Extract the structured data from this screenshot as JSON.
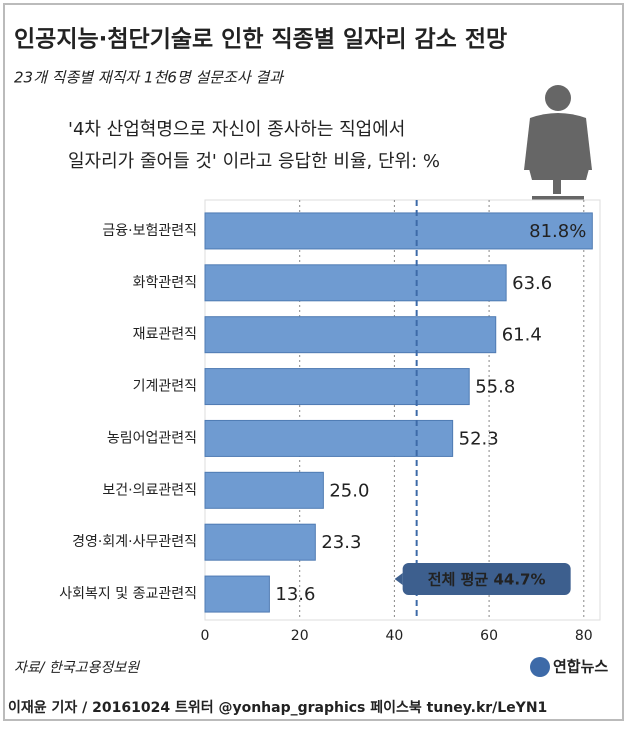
{
  "chart_data": {
    "type": "hbar",
    "title": "인공지능·첨단기술로 인한 직종별 일자리 감소 전망",
    "subtitle": "23개 직종별 재직자 1천6명 설문조사 결과",
    "note": [
      "'4차 산업혁명으로 자신이 종사하는 직업에서",
      "일자리가 줄어들 것' 이라고 응답한 비율, 단위: %"
    ],
    "categories": [
      "금융·보험관련직",
      "화학관련직",
      "재료관련직",
      "기계관련직",
      "농림어업관련직",
      "보건·의료관련직",
      "경영·회계·사무관련직",
      "사회복지 및 종교관련직"
    ],
    "values": [
      81.8,
      63.6,
      61.4,
      55.8,
      52.3,
      25.0,
      23.3,
      13.6
    ],
    "value_labels": [
      "81.8%",
      "63.6",
      "61.4",
      "55.8",
      "52.3",
      "25.0",
      "23.3",
      "13.6"
    ],
    "color": "#6f9bd1",
    "xlim": [
      0,
      83
    ],
    "xticks": [
      0,
      20,
      40,
      60,
      80
    ],
    "grid": true,
    "average": {
      "value": 44.7,
      "label": "전체 평균 44.7%"
    },
    "source": "자료/ 한국고용정보원",
    "logo": "연합뉴스",
    "footer": "이재윤 기자 / 20161024  트위터 @yonhap_graphics  페이스북 tuney.kr/LeYN1"
  }
}
